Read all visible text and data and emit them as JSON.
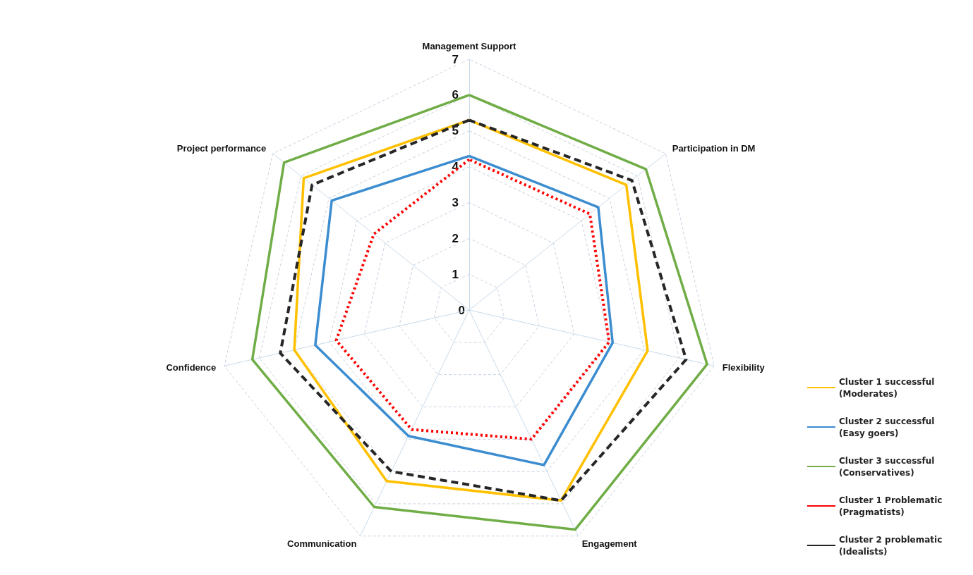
{
  "chart_data": {
    "type": "radar",
    "categories": [
      "Management Support",
      "Participation in DM",
      "Flexibility",
      "Engagement",
      "Communication",
      "Confidence",
      "Project performance"
    ],
    "series": [
      {
        "name": "Cluster 1 successful (Moderates)",
        "color": "#ffc000",
        "line_style": "solid",
        "values": [
          5.3,
          5.6,
          5.1,
          5.9,
          5.3,
          5.0,
          5.9
        ]
      },
      {
        "name": "Cluster 2 successful (Easy goers)",
        "color": "#3c8dd0",
        "line_style": "solid",
        "values": [
          4.3,
          4.6,
          4.1,
          4.8,
          3.9,
          4.4,
          4.9
        ]
      },
      {
        "name": "Cluster 3 successful (Conservatives)",
        "color": "#70ad47",
        "line_style": "solid",
        "values": [
          6.0,
          6.3,
          6.8,
          6.8,
          6.1,
          6.2,
          6.6
        ]
      },
      {
        "name": "Cluster 1 Problematic (Pragmatists)",
        "color": "#ff0000",
        "line_style": "dotted",
        "values": [
          4.2,
          4.3,
          4.0,
          4.0,
          3.7,
          3.8,
          3.4
        ]
      },
      {
        "name": "Cluster 2 problematic (Idealists)",
        "color": "#262626",
        "line_style": "dashed",
        "values": [
          5.3,
          5.8,
          6.2,
          5.9,
          5.0,
          5.4,
          5.6
        ]
      }
    ],
    "ylim": [
      0,
      7
    ],
    "yticks": [
      0,
      1,
      2,
      3,
      4,
      5,
      6,
      7
    ],
    "grid": true,
    "legend": "right",
    "marker": "none"
  }
}
